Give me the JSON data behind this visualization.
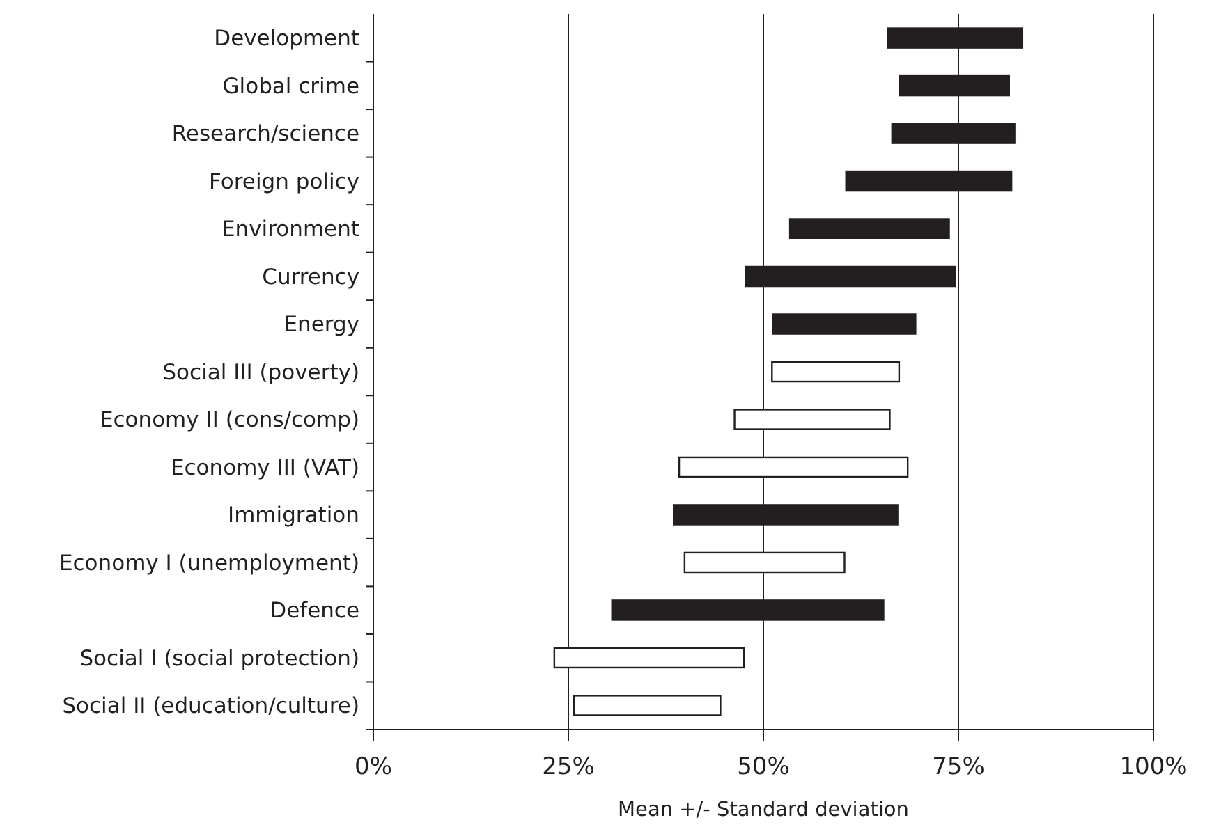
{
  "chart_data": {
    "type": "bar",
    "orientation": "horizontal",
    "xlabel": "Mean +/- Standard deviation",
    "categories": [
      "Development",
      "Global crime",
      "Research/science",
      "Foreign policy",
      "Environment",
      "Currency",
      "Energy",
      "Social III (poverty)",
      "Economy II (cons/comp)",
      "Economy III (VAT)",
      "Immigration",
      "Economy I (unemployment)",
      "Defence",
      "Social I (social protection)",
      "Social II (education/culture)"
    ],
    "base": [
      66,
      67.5,
      66.5,
      60.6,
      53.4,
      47.7,
      51.2,
      51.1,
      46.3,
      39.2,
      38.5,
      39.9,
      30.6,
      23.2,
      25.7
    ],
    "values": [
      17.2,
      14,
      15.7,
      21.2,
      20.4,
      26.9,
      18.3,
      16.3,
      19.9,
      29.3,
      28.7,
      20.5,
      34.8,
      24.3,
      18.8
    ],
    "colors": [
      "#231f20",
      "#231f20",
      "#231f20",
      "#231f20",
      "#231f20",
      "#231f20",
      "#231f20",
      "#ffffff",
      "#ffffff",
      "#ffffff",
      "#231f20",
      "#ffffff",
      "#231f20",
      "#ffffff",
      "#ffffff"
    ],
    "xlim": [
      0,
      100
    ],
    "xticks": [
      {
        "value": 0,
        "label": "0%"
      },
      {
        "value": 25,
        "label": "25%"
      },
      {
        "value": 50,
        "label": "50%"
      },
      {
        "value": 75,
        "label": "75%"
      },
      {
        "value": 100,
        "label": "100%"
      }
    ],
    "grid": "x"
  }
}
